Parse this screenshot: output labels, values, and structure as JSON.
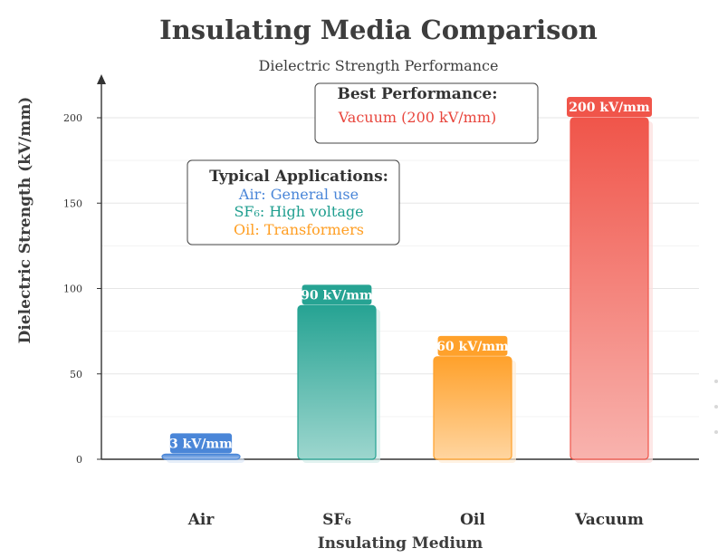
{
  "chart_data": {
    "type": "bar",
    "title": "Insulating Media Comparison",
    "subtitle": "Dielectric Strength Performance",
    "xlabel": "Insulating Medium",
    "ylabel": "Dielectric Strength (kV/mm)",
    "ylim": [
      0,
      210
    ],
    "yticks": [
      0,
      50,
      100,
      150,
      200
    ],
    "grid": true,
    "categories": [
      "Air",
      "SF₆",
      "Oil",
      "Vacuum"
    ],
    "values": [
      3,
      90,
      60,
      200
    ],
    "value_labels": [
      "3 kV/mm",
      "90 kV/mm",
      "60 kV/mm",
      "200  kV/mm"
    ],
    "colors": [
      "#4a86d8",
      "#26a393",
      "#ffa12b",
      "#f0554a"
    ],
    "annotations": {
      "best": {
        "heading": "Best Performance:",
        "text": "Vacuum (200 kV/mm)",
        "color": "#e8453c"
      },
      "applications": {
        "heading": "Typical Applications:",
        "lines": [
          {
            "text": "Air: General use",
            "color": "#4a86d8"
          },
          {
            "text": "SF₆: High voltage",
            "color": "#1f9e8f"
          },
          {
            "text": "Oil: Transformers",
            "color": "#ff9e22"
          }
        ]
      }
    }
  }
}
